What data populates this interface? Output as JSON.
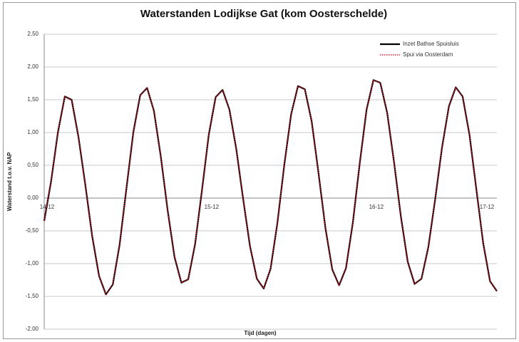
{
  "chart_data": {
    "type": "line",
    "title": "Waterstanden Lodijkse Gat (kom Oosterschelde)",
    "x_label": "Tijd (dagen)",
    "y_label": "Waterstand t.o.v. NAP",
    "categories": [
      "14-12",
      null,
      null,
      null,
      null,
      null,
      null,
      null,
      null,
      null,
      null,
      null,
      null,
      null,
      null,
      null,
      null,
      null,
      null,
      null,
      null,
      null,
      null,
      null,
      "15-12",
      null,
      null,
      null,
      null,
      null,
      null,
      null,
      null,
      null,
      null,
      null,
      null,
      null,
      null,
      null,
      null,
      null,
      null,
      null,
      null,
      null,
      null,
      null,
      "16-12",
      null,
      null,
      null,
      null,
      null,
      null,
      null,
      null,
      null,
      null,
      null,
      null,
      null,
      null,
      null,
      null,
      null,
      "17-12"
    ],
    "series": [
      {
        "name": "Inzet Bathse Spuisluis",
        "color": "#000000",
        "dash": "solid",
        "values": [
          -0.35,
          0.25,
          1.0,
          1.55,
          1.5,
          0.93,
          0.2,
          -0.58,
          -1.19,
          -1.47,
          -1.32,
          -0.71,
          0.16,
          1.01,
          1.57,
          1.68,
          1.33,
          0.63,
          -0.19,
          -0.9,
          -1.29,
          -1.24,
          -0.7,
          0.12,
          0.97,
          1.54,
          1.65,
          1.35,
          0.75,
          -0.01,
          -0.73,
          -1.23,
          -1.38,
          -1.08,
          -0.38,
          0.5,
          1.28,
          1.71,
          1.66,
          1.17,
          0.38,
          -0.46,
          -1.09,
          -1.33,
          -1.07,
          -0.37,
          0.53,
          1.35,
          1.8,
          1.76,
          1.3,
          0.55,
          -0.28,
          -0.97,
          -1.31,
          -1.23,
          -0.75,
          -0.02,
          0.77,
          1.4,
          1.69,
          1.55,
          0.97,
          0.14,
          -0.69,
          -1.27,
          -1.42
        ]
      },
      {
        "name": "Spui via Oosterdam",
        "color": "#e8192c",
        "dash": "dotted",
        "values": [
          -0.35,
          0.25,
          1.0,
          1.55,
          1.5,
          0.93,
          0.2,
          -0.58,
          -1.19,
          -1.47,
          -1.32,
          -0.71,
          0.16,
          1.01,
          1.57,
          1.68,
          1.33,
          0.63,
          -0.19,
          -0.9,
          -1.29,
          -1.24,
          -0.7,
          0.12,
          0.97,
          1.54,
          1.65,
          1.35,
          0.75,
          -0.01,
          -0.73,
          -1.23,
          -1.38,
          -1.08,
          -0.38,
          0.5,
          1.28,
          1.71,
          1.66,
          1.17,
          0.38,
          -0.46,
          -1.09,
          -1.33,
          -1.07,
          -0.37,
          0.53,
          1.35,
          1.8,
          1.76,
          1.3,
          0.55,
          -0.28,
          -0.97,
          -1.31,
          -1.23,
          -0.75,
          -0.02,
          0.77,
          1.4,
          1.69,
          1.55,
          0.97,
          0.14,
          -0.69,
          -1.27,
          -1.42
        ]
      }
    ],
    "ylim": [
      -2.0,
      2.5
    ],
    "yticks": [
      {
        "value": -2.0,
        "label": "-2,00"
      },
      {
        "value": -1.5,
        "label": "-1,50"
      },
      {
        "value": -1.0,
        "label": "-1,00"
      },
      {
        "value": -0.5,
        "label": "-0,50"
      },
      {
        "value": 0,
        "label": "0,00"
      },
      {
        "value": 0.5,
        "label": "0,50"
      },
      {
        "value": 1.0,
        "label": "1,00"
      },
      {
        "value": 1.5,
        "label": "1,50"
      },
      {
        "value": 2.0,
        "label": "2,00"
      },
      {
        "value": 2.5,
        "label": "2,50"
      }
    ],
    "grid": true,
    "legend": "upper right"
  }
}
